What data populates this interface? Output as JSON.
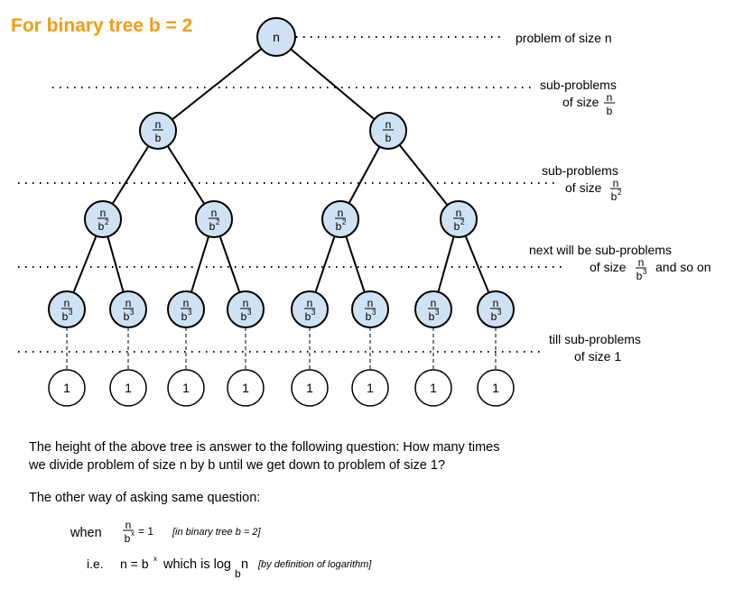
{
  "title": "For binary tree b = 2",
  "colors": {
    "title": "#f39c12",
    "node_fill": "#cfe2f3",
    "node_stroke": "#000000"
  },
  "tree": {
    "root": {
      "num": "n",
      "den": ""
    },
    "level1": {
      "num": "n",
      "den": "b"
    },
    "level2": {
      "num": "n",
      "den": "b",
      "exp": "2"
    },
    "level3": {
      "num": "n",
      "den": "b",
      "exp": "3"
    },
    "leaf": "1"
  },
  "annotations": {
    "a0": "problem of size n",
    "a1_line1": "sub-problems",
    "a1_line2": "of size",
    "a1_num": "n",
    "a1_den": "b",
    "a2_line1": "sub-problems",
    "a2_line2": "of size",
    "a2_num": "n",
    "a2_den": "b",
    "a2_exp": "2",
    "a3_line1": "next will be sub-problems",
    "a3_line2": "of size",
    "a3_num": "n",
    "a3_den": "b",
    "a3_exp": "3",
    "a3_tail": "and so on",
    "a4_line1": "till sub-problems",
    "a4_line2": "of size 1"
  },
  "text": {
    "p1_line1": "The height of the above tree is answer to the following question: How many times",
    "p1_line2": "we divide problem of size n by b until we get down to problem of size 1?",
    "p2": "The other way of asking same question:",
    "when": "when",
    "when_num": "n",
    "when_den": "b",
    "when_exp": "x",
    "when_eq": "= 1",
    "when_note": "[in binary tree b = 2]",
    "ie": "i.e.",
    "ie_eq": "n = b",
    "ie_exp": "x",
    "ie_which": "which is log",
    "ie_base": "b",
    "ie_n": "n",
    "ie_note": "[by definition of logarithm]"
  }
}
